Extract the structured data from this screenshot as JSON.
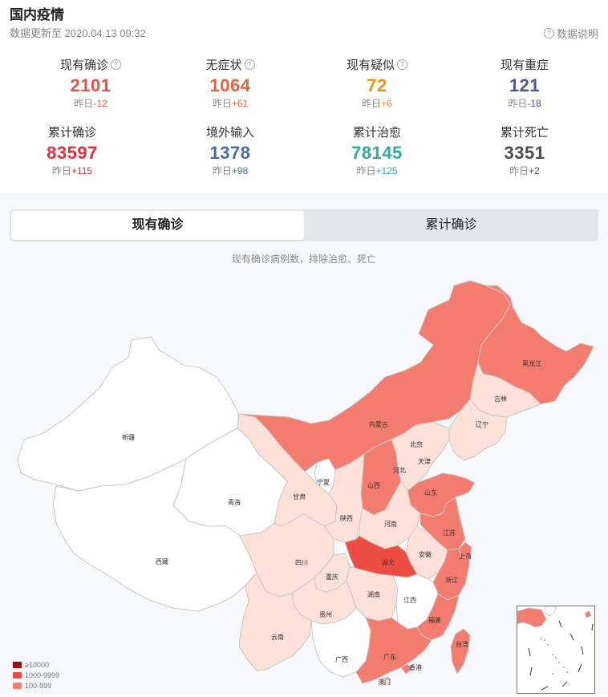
{
  "header": {
    "title": "国内疫情",
    "update_time": "数据更新至 2020.04.13 09:32",
    "explain_label": "数据说明"
  },
  "stats": [
    {
      "label": "现有确诊",
      "value": "2101",
      "delta_prefix": "昨日",
      "delta": "-12",
      "color": "#e6534a",
      "delta_color": "#e6534a",
      "help": true
    },
    {
      "label": "无症状",
      "value": "1064",
      "delta_prefix": "昨日",
      "delta": "+61",
      "color": "#e8633f",
      "delta_color": "#e8633f",
      "help": true
    },
    {
      "label": "现有疑似",
      "value": "72",
      "delta_prefix": "昨日",
      "delta": "+6",
      "color": "#ec9217",
      "delta_color": "#ec9217",
      "help": true
    },
    {
      "label": "现有重症",
      "value": "121",
      "delta_prefix": "昨日",
      "delta": "-18",
      "color": "#545499",
      "delta_color": "#545499",
      "help": false
    },
    {
      "label": "累计确诊",
      "value": "83597",
      "delta_prefix": "昨日",
      "delta": "+115",
      "color": "#e02f36",
      "delta_color": "#e02f36",
      "help": false
    },
    {
      "label": "境外输入",
      "value": "1378",
      "delta_prefix": "昨日",
      "delta": "+98",
      "color": "#476da0",
      "delta_color": "#476da0",
      "help": false
    },
    {
      "label": "累计治愈",
      "value": "78145",
      "delta_prefix": "昨日",
      "delta": "+125",
      "color": "#34aa9f",
      "delta_color": "#34aa9f",
      "help": false
    },
    {
      "label": "累计死亡",
      "value": "3351",
      "delta_prefix": "昨日",
      "delta": "+2",
      "color": "#4c4c4c",
      "delta_color": "#4c4c4c",
      "help": false
    }
  ],
  "tabs": {
    "active": "现有确诊",
    "inactive": "累计确诊"
  },
  "map": {
    "caption": "现有确诊病例数，排除治愈、死亡",
    "colors": {
      "c1000": "#ee4d43",
      "c100": "#f37c6e",
      "c10": "#fde0d7",
      "c1": "#ffffff",
      "border": "#c9c9c9"
    },
    "regions": [
      {
        "name": "新疆",
        "level": "c1"
      },
      {
        "name": "西藏",
        "level": "c1"
      },
      {
        "name": "青海",
        "level": "c1"
      },
      {
        "name": "甘肃",
        "level": "c10"
      },
      {
        "name": "宁夏",
        "level": "c1"
      },
      {
        "name": "内蒙古",
        "level": "c100"
      },
      {
        "name": "黑龙江",
        "level": "c100"
      },
      {
        "name": "吉林",
        "level": "c10"
      },
      {
        "name": "辽宁",
        "level": "c10"
      },
      {
        "name": "北京",
        "level": "c100"
      },
      {
        "name": "天津",
        "level": "c100"
      },
      {
        "name": "河北",
        "level": "c10"
      },
      {
        "name": "山西",
        "level": "c100"
      },
      {
        "name": "山东",
        "level": "c100"
      },
      {
        "name": "陕西",
        "level": "c10"
      },
      {
        "name": "河南",
        "level": "c10"
      },
      {
        "name": "江苏",
        "level": "c100"
      },
      {
        "name": "安徽",
        "level": "c10"
      },
      {
        "name": "上海",
        "level": "c100"
      },
      {
        "name": "湖北",
        "level": "c1000"
      },
      {
        "name": "浙江",
        "level": "c100"
      },
      {
        "name": "四川",
        "level": "c10"
      },
      {
        "name": "重庆",
        "level": "c10"
      },
      {
        "name": "湖南",
        "level": "c10"
      },
      {
        "name": "江西",
        "level": "c1"
      },
      {
        "name": "贵州",
        "level": "c10"
      },
      {
        "name": "云南",
        "level": "c10"
      },
      {
        "name": "福建",
        "level": "c100"
      },
      {
        "name": "台湾",
        "level": "c100"
      },
      {
        "name": "广西",
        "level": "c1"
      },
      {
        "name": "广东",
        "level": "c100"
      },
      {
        "name": "香港",
        "level": "c100"
      },
      {
        "name": "澳门",
        "level": "c10"
      }
    ]
  },
  "legend": [
    {
      "label": "≥10000",
      "color": "#9f0d12"
    },
    {
      "label": "1000-9999",
      "color": "#ee4d43"
    },
    {
      "label": "100-999",
      "color": "#f37c6e"
    }
  ]
}
